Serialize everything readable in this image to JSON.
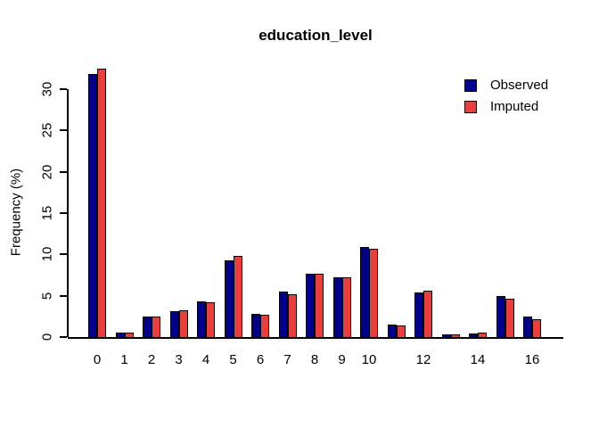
{
  "title": "education_level",
  "y_axis_label": "Frequency (%)",
  "legend": {
    "position": "top-right",
    "items": [
      "Observed",
      "Imputed"
    ]
  },
  "colors": {
    "observed": "#00008B",
    "imputed": "#E93E3C",
    "bar_border": "#000000",
    "axis": "#000000",
    "background": "#FFFFFF"
  },
  "chart_data": {
    "type": "bar",
    "title": "education_level",
    "xlabel": "",
    "ylabel": "Frequency (%)",
    "ylim": [
      0,
      33
    ],
    "yticks": [
      0,
      5,
      10,
      15,
      20,
      25,
      30
    ],
    "grid": false,
    "legend_position": "top-right",
    "categories": [
      0,
      1,
      2,
      3,
      4,
      5,
      6,
      7,
      8,
      9,
      10,
      11,
      12,
      13,
      14,
      15,
      16
    ],
    "x_tick_labels": [
      "0",
      "1",
      "2",
      "3",
      "4",
      "5",
      "6",
      "7",
      "8",
      "9",
      "10",
      "",
      "12",
      "",
      "14",
      "",
      "16"
    ],
    "series": [
      {
        "name": "Observed",
        "color": "#00008B",
        "values": [
          31.7,
          0.4,
          2.4,
          3.0,
          4.2,
          9.2,
          2.7,
          5.4,
          7.5,
          7.1,
          10.8,
          1.4,
          5.3,
          0.2,
          0.3,
          4.8,
          2.4
        ]
      },
      {
        "name": "Imputed",
        "color": "#E93E3C",
        "values": [
          32.3,
          0.4,
          2.4,
          3.1,
          4.1,
          9.7,
          2.6,
          5.1,
          7.6,
          7.1,
          10.6,
          1.3,
          5.5,
          0.2,
          0.4,
          4.5,
          2.1
        ]
      }
    ]
  }
}
